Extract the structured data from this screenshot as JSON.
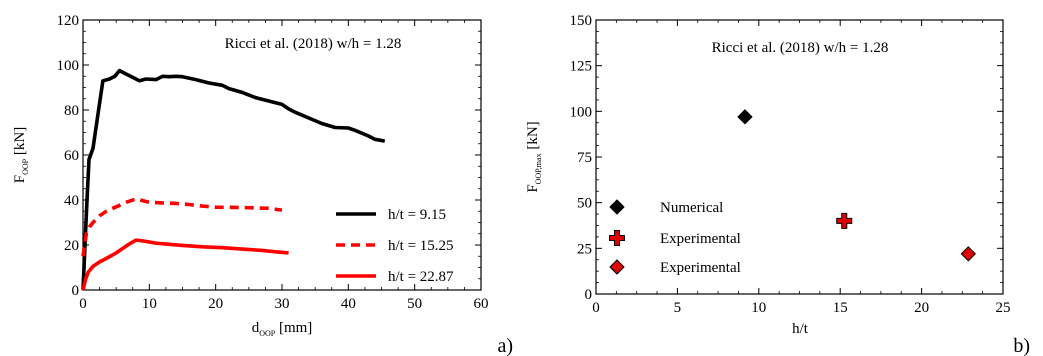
{
  "chart_data": [
    {
      "id": "a",
      "type": "line",
      "panel_label": "a)",
      "annotation": "Ricci et al. (2018) w/h = 1.28",
      "xlabel": "d",
      "xlabel_sub": "OOP",
      "xlabel_unit": " [mm]",
      "ylabel": "F",
      "ylabel_sub": "OOP",
      "ylabel_unit": " [kN]",
      "xlim": [
        0,
        60
      ],
      "ylim": [
        0,
        120
      ],
      "xticks": [
        0,
        10,
        20,
        30,
        40,
        50,
        60
      ],
      "yticks": [
        0,
        20,
        40,
        60,
        80,
        100,
        120
      ],
      "grid": false,
      "legend_position": "lower-right",
      "series": [
        {
          "name": "h/t = 9.15",
          "color": "#000000",
          "style": "solid",
          "points": [
            [
              0,
              0
            ],
            [
              0.3,
              20
            ],
            [
              0.6,
              40
            ],
            [
              0.9,
              58
            ],
            [
              1.5,
              63
            ],
            [
              2.2,
              77
            ],
            [
              3,
              93
            ],
            [
              4,
              93.8
            ],
            [
              4.8,
              95
            ],
            [
              5.5,
              97.5
            ],
            [
              6.5,
              96
            ],
            [
              7.5,
              94.5
            ],
            [
              8.5,
              93
            ],
            [
              9.5,
              93.8
            ],
            [
              11,
              93.5
            ],
            [
              12,
              95
            ],
            [
              13,
              94.8
            ],
            [
              14,
              95
            ],
            [
              15,
              94.8
            ],
            [
              17,
              93.5
            ],
            [
              19,
              92
            ],
            [
              21,
              91
            ],
            [
              22,
              89.5
            ],
            [
              24,
              87.8
            ],
            [
              26,
              85.5
            ],
            [
              28,
              84
            ],
            [
              30,
              82.5
            ],
            [
              31,
              80.5
            ],
            [
              32,
              79
            ],
            [
              34,
              76.5
            ],
            [
              36,
              74
            ],
            [
              38,
              72.2
            ],
            [
              40,
              72
            ],
            [
              41,
              71
            ],
            [
              43,
              68.5
            ],
            [
              44,
              67
            ],
            [
              45.5,
              66.2
            ]
          ]
        },
        {
          "name": "h/t = 15.25",
          "color": "#ff0000",
          "style": "dashed",
          "points": [
            [
              0,
              15
            ],
            [
              0.5,
              25
            ],
            [
              1,
              28
            ],
            [
              1.5,
              30
            ],
            [
              2.5,
              33
            ],
            [
              3.5,
              35
            ],
            [
              5,
              37
            ],
            [
              6.5,
              39
            ],
            [
              8,
              40.5
            ],
            [
              10,
              39
            ],
            [
              12,
              38.7
            ],
            [
              14,
              38.5
            ],
            [
              16,
              38
            ],
            [
              18,
              37.3
            ],
            [
              20,
              36.8
            ],
            [
              23,
              36.7
            ],
            [
              26,
              36.5
            ],
            [
              28,
              36.3
            ],
            [
              30,
              35.5
            ]
          ]
        },
        {
          "name": "h/t = 22.87",
          "color": "#ff0000",
          "style": "solid",
          "points": [
            [
              0,
              0
            ],
            [
              0.4,
              5
            ],
            [
              0.8,
              8
            ],
            [
              1.5,
              10.5
            ],
            [
              2.5,
              12.5
            ],
            [
              3.5,
              14
            ],
            [
              5,
              16.5
            ],
            [
              6,
              18.5
            ],
            [
              7,
              20.5
            ],
            [
              8,
              22.2
            ],
            [
              9,
              21.8
            ],
            [
              11,
              20.8
            ],
            [
              13,
              20.3
            ],
            [
              15,
              19.8
            ],
            [
              18,
              19.2
            ],
            [
              21,
              18.8
            ],
            [
              24,
              18.2
            ],
            [
              27,
              17.6
            ],
            [
              29,
              17
            ],
            [
              31,
              16.5
            ]
          ]
        }
      ]
    },
    {
      "id": "b",
      "type": "scatter",
      "panel_label": "b)",
      "annotation": "Ricci et al. (2018) w/h = 1.28",
      "xlabel": "h/t",
      "ylabel": "F",
      "ylabel_sub": "OOP,max",
      "ylabel_unit": " [kN]",
      "xlim": [
        0,
        25
      ],
      "ylim": [
        0,
        150
      ],
      "xticks": [
        0,
        5,
        10,
        15,
        20,
        25
      ],
      "yticks": [
        0,
        25,
        50,
        75,
        100,
        125,
        150
      ],
      "grid": false,
      "legend_position": "lower-left",
      "series": [
        {
          "name": "Numerical",
          "marker": "diamond",
          "color": "#000000",
          "points": [
            [
              9.15,
              97
            ]
          ]
        },
        {
          "name": "Experimental",
          "marker": "cross",
          "color": "#e00000",
          "points": [
            [
              15.25,
              40
            ]
          ]
        },
        {
          "name": "Experimental",
          "marker": "diamond",
          "color": "#e00000",
          "points": [
            [
              22.87,
              22
            ]
          ]
        }
      ]
    }
  ]
}
